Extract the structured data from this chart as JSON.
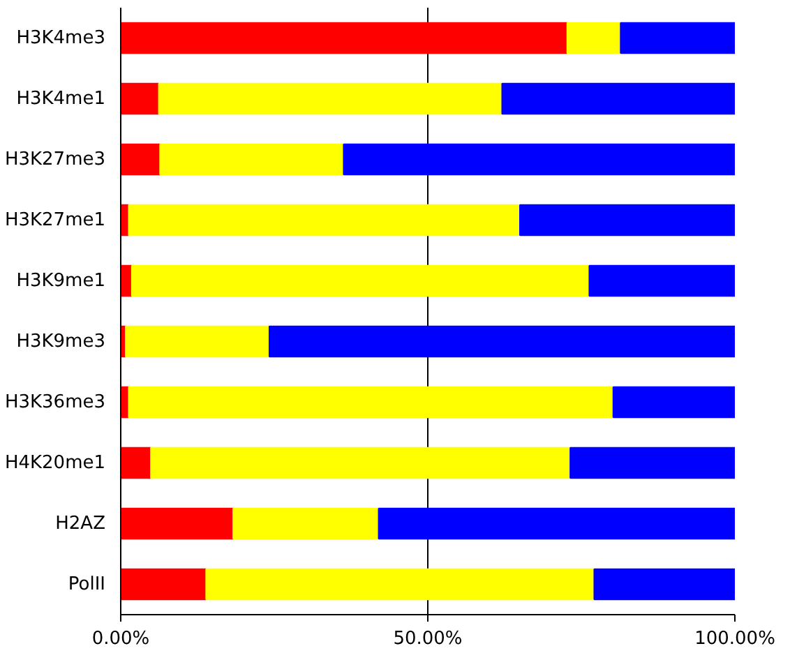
{
  "chart_data": {
    "type": "bar",
    "orientation": "horizontal",
    "stacked": true,
    "categories": [
      "H3K4me3",
      "H3K4me1",
      "H3K27me3",
      "H3K27me1",
      "H3K9me1",
      "H3K9me3",
      "H3K36me3",
      "H4K20me1",
      "H2AZ",
      "PolII"
    ],
    "series": [
      {
        "color": "#ff0000",
        "values": [
          72.7,
          6.2,
          6.4,
          1.3,
          1.8,
          0.8,
          1.3,
          4.9,
          18.3,
          13.9
        ]
      },
      {
        "color": "#ffff00",
        "values": [
          8.7,
          55.9,
          29.9,
          63.7,
          74.5,
          23.4,
          78.9,
          68.3,
          23.7,
          63.2
        ]
      },
      {
        "color": "#0000ff",
        "values": [
          18.6,
          37.9,
          63.7,
          35.0,
          23.7,
          75.8,
          19.8,
          26.8,
          58.0,
          22.9
        ]
      }
    ],
    "xlim": [
      0,
      100
    ],
    "xticks": [
      {
        "value": 0,
        "label": "0.00%"
      },
      {
        "value": 50,
        "label": "50.00%"
      },
      {
        "value": 100,
        "label": "100.00%"
      }
    ],
    "grid": "x"
  }
}
